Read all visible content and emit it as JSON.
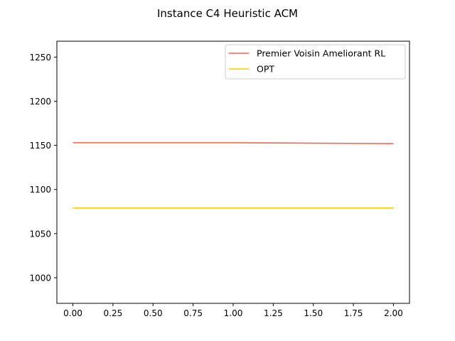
{
  "chart_data": {
    "type": "line",
    "title": "Instance C4 Heuristic ACM",
    "xlabel": "",
    "ylabel": "",
    "xlim": [
      -0.1,
      2.1
    ],
    "ylim": [
      971,
      1268
    ],
    "xticks": [
      0.0,
      0.25,
      0.5,
      0.75,
      1.0,
      1.25,
      1.5,
      1.75,
      2.0
    ],
    "xtick_labels": [
      "0.00",
      "0.25",
      "0.50",
      "0.75",
      "1.00",
      "1.25",
      "1.50",
      "1.75",
      "2.00"
    ],
    "yticks": [
      1000,
      1050,
      1100,
      1150,
      1200,
      1250
    ],
    "ytick_labels": [
      "1000",
      "1050",
      "1100",
      "1150",
      "1200",
      "1250"
    ],
    "grid": false,
    "legend_position": "upper right",
    "series": [
      {
        "name": "Premier Voisin Ameliorant RL",
        "color": "#f4624a",
        "x": [
          0,
          1,
          2
        ],
        "y": [
          1153,
          1153,
          1152
        ]
      },
      {
        "name": "OPT",
        "color": "#ffcc00",
        "x": [
          0,
          1,
          2
        ],
        "y": [
          1079,
          1079,
          1079
        ]
      }
    ]
  }
}
